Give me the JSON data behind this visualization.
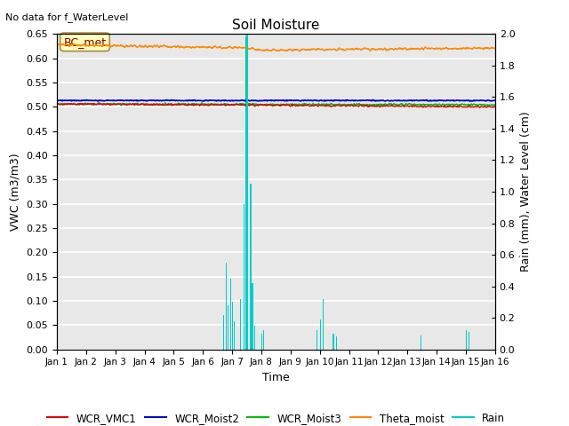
{
  "title": "Soil Moisture",
  "top_left_text": "No data for f_WaterLevel",
  "annotation_text": "BC_met",
  "ylabel_left": "VWC (m3/m3)",
  "ylabel_right": "Rain (mm), Water Level (cm)",
  "xlabel": "Time",
  "ylim_left": [
    0.0,
    0.65
  ],
  "ylim_right": [
    0.0,
    2.0
  ],
  "xlim": [
    0,
    15
  ],
  "xtick_labels": [
    "Jan 1",
    "Jan 2",
    "Jan 3",
    "Jan 4",
    "Jan 5",
    "Jan 6",
    "Jan 7",
    "Jan 8",
    "Jan 9",
    "Jan 10",
    "Jan 11",
    "Jan 12",
    "Jan 13",
    "Jan 14",
    "Jan 15",
    "Jan 16"
  ],
  "bg_dark": "#d8d8d8",
  "bg_light": "#e8e8e8",
  "wcr_vmc1_color": "#dd0000",
  "wcr_moist2_color": "#0000cc",
  "wcr_moist3_color": "#00bb00",
  "theta_color": "#ff8800",
  "rain_color": "#00cccc",
  "cyan_line_color": "#00cccc",
  "n_points": 2160,
  "days": 15,
  "seed": 42
}
